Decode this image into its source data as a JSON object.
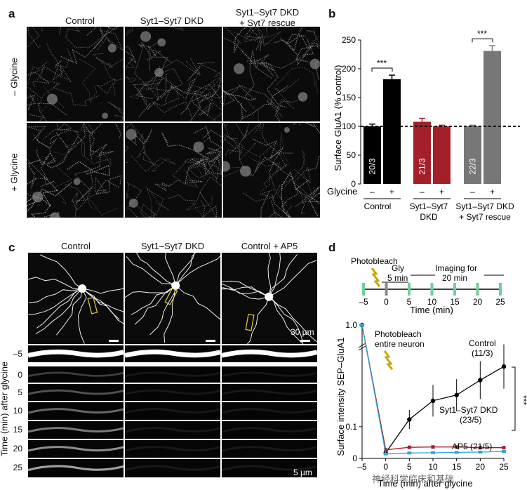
{
  "panels": {
    "a": {
      "label": "a",
      "columns": [
        "Control",
        "Syt1–Syt7 DKD",
        "Syt1–Syt7 DKD\n+ Syt7 rescue"
      ],
      "rows": [
        "– Glycine",
        "+ Glycine"
      ]
    },
    "b": {
      "label": "b",
      "ylabel": "Surface GluA1 (% control)",
      "glycine_label": "Glycine",
      "groups": [
        "Control",
        "Syt1–Syt7\nDKD",
        "Syt1–Syt7 DKD\n+ Syt7 rescue"
      ],
      "n_labels": [
        "20/3",
        "21/3",
        "22/3"
      ],
      "significance": [
        "***",
        "***"
      ],
      "minus": "–",
      "plus": "+"
    },
    "c": {
      "label": "c",
      "columns": [
        "Control",
        "Syt1–Syt7 DKD",
        "Control + AP5"
      ],
      "scale_top": "30 µm",
      "scale_bottom": "5 µm",
      "time_axis_label": "Time (min) after glycine",
      "time_points": [
        "–5",
        "0",
        "5",
        "10",
        "15",
        "20",
        "25"
      ]
    },
    "d": {
      "label": "d",
      "photobleach": "Photobleach",
      "gly": "Gly\n5 min",
      "imaging": "Imaging for\n20 min",
      "timeline_xlabel": "Time (min)",
      "timeline_ticks": [
        "–5",
        "0",
        "5",
        "10",
        "15",
        "20",
        "25"
      ],
      "photobleach_note": "Photobleach\nentire neuron",
      "ylabel": "Surface intensity SEP–GluA1",
      "xlabel": "Time (min) after glycine",
      "series_labels": [
        "Control\n(11/3)",
        "Syt1–Syt7 DKD\n(23/5)",
        "AP5 (21/5)"
      ],
      "significance": "***"
    },
    "watermark": "神经科学临床和基础"
  },
  "chart_data": [
    {
      "type": "bar",
      "title": "",
      "ylabel": "Surface GluA1 (% control)",
      "ylim": [
        0,
        250
      ],
      "yticks": [
        0,
        50,
        100,
        150,
        200,
        250
      ],
      "categories": [
        "Control –",
        "Control +",
        "Syt1–Syt7 DKD –",
        "Syt1–Syt7 DKD +",
        "Syt1–Syt7 DKD + Syt7 rescue –",
        "Syt1–Syt7 DKD + Syt7 rescue +"
      ],
      "values": [
        100,
        182,
        108,
        100,
        100,
        231
      ],
      "errors": [
        4,
        7,
        6,
        2,
        2,
        9
      ],
      "colors": [
        "#000000",
        "#000000",
        "#a3202b",
        "#a3202b",
        "#777777",
        "#777777"
      ],
      "reference_line": 100
    },
    {
      "type": "line",
      "ylabel": "Surface intensity SEP–GluA1",
      "xlabel": "Time (min) after glycine",
      "xlim": [
        -5,
        25
      ],
      "xticks": [
        -5,
        0,
        5,
        10,
        15,
        20,
        25
      ],
      "yticks": [
        0,
        0.1,
        1.0
      ],
      "x": [
        -5,
        0,
        5,
        10,
        15,
        20,
        25
      ],
      "series": [
        {
          "name": "Control (11/3)",
          "color": "#000000",
          "values": [
            1.0,
            0.018,
            0.123,
            0.182,
            0.2,
            0.247,
            0.29
          ],
          "errors": [
            0,
            0.006,
            0.03,
            0.05,
            0.05,
            0.06,
            0.07
          ]
        },
        {
          "name": "Syt1–Syt7 DKD (23/5)",
          "color": "#a3202b",
          "values": [
            1.0,
            0.027,
            0.035,
            0.036,
            0.036,
            0.034,
            0.034
          ],
          "errors": [
            0,
            0.004,
            0.003,
            0.003,
            0.003,
            0.003,
            0.003
          ]
        },
        {
          "name": "AP5 (21/5)",
          "color": "#2aa8d8",
          "values": [
            1.0,
            0.014,
            0.017,
            0.018,
            0.019,
            0.02,
            0.022
          ],
          "errors": [
            0,
            0.003,
            0.002,
            0.002,
            0.002,
            0.002,
            0.002
          ]
        }
      ]
    }
  ]
}
